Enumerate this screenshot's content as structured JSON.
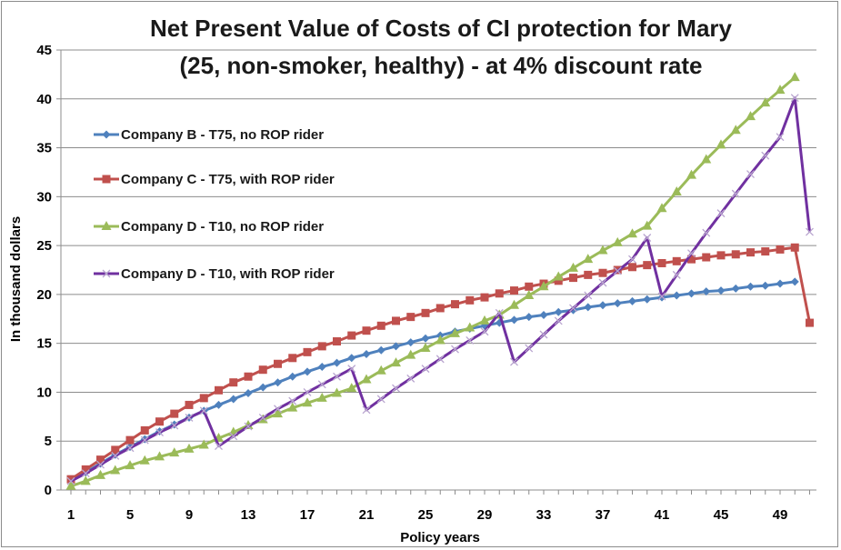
{
  "chart_data": {
    "type": "line",
    "title_line1": "Net Present Value of Costs  of CI protection for Mary",
    "title_line2": "(25, non-smoker, healthy) - at  4% discount rate",
    "xlabel": "Policy years",
    "ylabel": "In thousand dollars",
    "ylim": [
      0,
      45
    ],
    "yticks": [
      0,
      5,
      10,
      15,
      20,
      25,
      30,
      35,
      40,
      45
    ],
    "xlim": [
      1,
      51
    ],
    "xticks": [
      1,
      5,
      9,
      13,
      17,
      21,
      25,
      29,
      33,
      37,
      41,
      45,
      49
    ],
    "grid": "horizontal",
    "legend_position": "upper-left",
    "x": [
      1,
      2,
      3,
      4,
      5,
      6,
      7,
      8,
      9,
      10,
      11,
      12,
      13,
      14,
      15,
      16,
      17,
      18,
      19,
      20,
      21,
      22,
      23,
      24,
      25,
      26,
      27,
      28,
      29,
      30,
      31,
      32,
      33,
      34,
      35,
      36,
      37,
      38,
      39,
      40,
      41,
      42,
      43,
      44,
      45,
      46,
      47,
      48,
      49,
      50,
      51
    ],
    "series": [
      {
        "name": "Company B - T75, no ROP rider",
        "color": "#4f81bd",
        "marker": "diamond",
        "values": [
          0.9,
          1.8,
          2.7,
          3.6,
          4.4,
          5.2,
          6.0,
          6.7,
          7.4,
          8.1,
          8.7,
          9.3,
          9.9,
          10.5,
          11.0,
          11.6,
          12.1,
          12.6,
          13.0,
          13.5,
          13.9,
          14.3,
          14.7,
          15.1,
          15.5,
          15.8,
          16.2,
          16.5,
          16.8,
          17.1,
          17.4,
          17.7,
          17.9,
          18.2,
          18.4,
          18.7,
          18.9,
          19.1,
          19.3,
          19.5,
          19.7,
          19.9,
          20.1,
          20.3,
          20.4,
          20.6,
          20.8,
          20.9,
          21.1,
          21.3,
          null
        ]
      },
      {
        "name": "Company C - T75, with ROP rider",
        "color": "#c0504d",
        "marker": "square",
        "values": [
          1.1,
          2.1,
          3.1,
          4.1,
          5.1,
          6.1,
          7.0,
          7.8,
          8.7,
          9.4,
          10.2,
          11.0,
          11.6,
          12.3,
          12.9,
          13.5,
          14.1,
          14.7,
          15.2,
          15.8,
          16.3,
          16.8,
          17.3,
          17.7,
          18.1,
          18.6,
          19.0,
          19.4,
          19.7,
          20.1,
          20.4,
          20.8,
          21.1,
          21.4,
          21.7,
          22.0,
          22.2,
          22.5,
          22.8,
          23.0,
          23.2,
          23.4,
          23.6,
          23.8,
          24.0,
          24.1,
          24.3,
          24.4,
          24.6,
          24.8,
          17.1
        ]
      },
      {
        "name": "Company D - T10, no ROP rider",
        "color": "#9bbb59",
        "marker": "triangle",
        "values": [
          0.4,
          0.9,
          1.5,
          2.0,
          2.5,
          3.0,
          3.4,
          3.8,
          4.2,
          4.6,
          5.3,
          5.9,
          6.6,
          7.2,
          7.8,
          8.4,
          8.9,
          9.4,
          9.9,
          10.4,
          11.3,
          12.2,
          13.0,
          13.8,
          14.5,
          15.3,
          16.0,
          16.6,
          17.3,
          17.9,
          18.9,
          19.9,
          20.8,
          21.8,
          22.7,
          23.6,
          24.5,
          25.3,
          26.2,
          27.0,
          28.8,
          30.5,
          32.2,
          33.8,
          35.3,
          36.8,
          38.2,
          39.6,
          40.9,
          42.2,
          null
        ]
      },
      {
        "name": "Company D - T10, with ROP rider",
        "color": "#7030a0",
        "marker": "x",
        "values": [
          0.9,
          1.7,
          2.6,
          3.5,
          4.3,
          5.1,
          5.9,
          6.6,
          7.4,
          8.1,
          4.5,
          5.5,
          6.5,
          7.4,
          8.3,
          9.1,
          10.0,
          10.8,
          11.6,
          12.4,
          8.2,
          9.3,
          10.4,
          11.4,
          12.4,
          13.4,
          14.4,
          15.3,
          16.2,
          18.1,
          13.1,
          14.5,
          15.9,
          17.3,
          18.6,
          19.9,
          21.2,
          22.4,
          23.6,
          25.8,
          19.8,
          22.0,
          24.2,
          26.3,
          28.3,
          30.3,
          32.3,
          34.2,
          36.1,
          40.1,
          26.4
        ]
      }
    ]
  }
}
